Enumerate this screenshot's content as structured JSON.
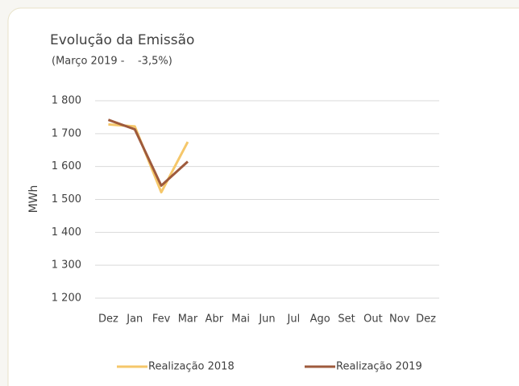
{
  "chart_data": {
    "type": "line",
    "title": "Evolução da Emissão",
    "subtitle": "(Março 2019 -    -3,5%)",
    "y_label": "MWh",
    "categories": [
      "Dez",
      "Jan",
      "Fev",
      "Mar",
      "Abr",
      "Mai",
      "Jun",
      "Jul",
      "Ago",
      "Set",
      "Out",
      "Nov",
      "Dez"
    ],
    "series": [
      {
        "name": "Realização 2018",
        "color": "#f5c76a",
        "values": [
          1728,
          1722,
          1522,
          1675,
          null,
          null,
          null,
          null,
          null,
          null,
          null,
          null,
          null
        ]
      },
      {
        "name": "Realização 2019",
        "color": "#9e5a3c",
        "values": [
          1742,
          1713,
          1542,
          1615,
          null,
          null,
          null,
          null,
          null,
          null,
          null,
          null,
          null
        ]
      }
    ],
    "ylim": [
      1200,
      1800
    ],
    "yticks": [
      {
        "value": 1200,
        "label": "1 200"
      },
      {
        "value": 1300,
        "label": "1 300"
      },
      {
        "value": 1400,
        "label": "1 400"
      },
      {
        "value": 1500,
        "label": "1 500"
      },
      {
        "value": 1600,
        "label": "1 600"
      },
      {
        "value": 1700,
        "label": "1 700"
      },
      {
        "value": 1800,
        "label": "1 800"
      }
    ],
    "grid": true,
    "legend": "bottom"
  }
}
